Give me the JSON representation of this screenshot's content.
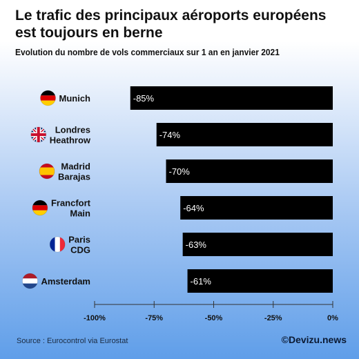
{
  "title": "Le trafic des principaux aéroports européens est toujours en berne",
  "subtitle": "Evolution du nombre de vols commerciaux sur 1 an en janvier 2021",
  "source": "Source : Eurocontrol via Eurostat",
  "brand": "©Devizu.news",
  "colors": {
    "bar": "#000000",
    "bar_text": "#ffffff",
    "axis": "#333333"
  },
  "chart_data": {
    "type": "bar",
    "orientation": "horizontal",
    "categories": [
      {
        "label": "Munich",
        "flag": "germany-flag-icon"
      },
      {
        "label": "Londres Heathrow",
        "flag": "uk-flag-icon"
      },
      {
        "label": "Madrid Barajas",
        "flag": "spain-flag-icon"
      },
      {
        "label": "Francfort Main",
        "flag": "germany-flag-icon"
      },
      {
        "label": "Paris CDG",
        "flag": "france-flag-icon"
      },
      {
        "label": "Amsterdam",
        "flag": "netherlands-flag-icon"
      }
    ],
    "values": [
      -85,
      -74,
      -70,
      -64,
      -63,
      -61
    ],
    "value_labels": [
      "-85%",
      "-74%",
      "-70%",
      "-64%",
      "-63%",
      "-61%"
    ],
    "xlim": [
      -100,
      0
    ],
    "xticks": [
      -100,
      -75,
      -50,
      -25,
      0
    ],
    "xtick_labels": [
      "-100%",
      "-75%",
      "-50%",
      "-25%",
      "0%"
    ],
    "grid": false
  }
}
